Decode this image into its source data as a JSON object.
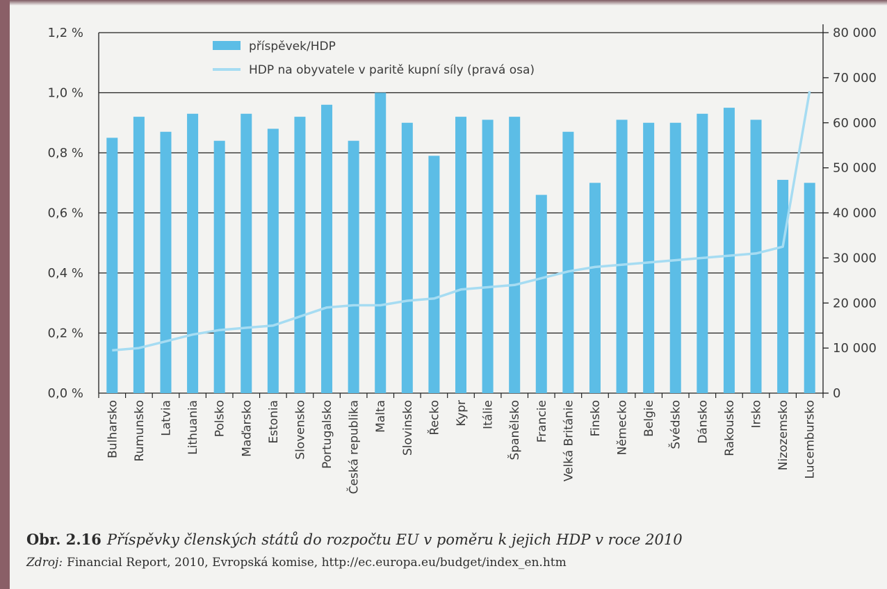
{
  "chart_data": {
    "type": "bar",
    "categories": [
      "Bulharsko",
      "Rumunsko",
      "Latvia",
      "Lithuania",
      "Polsko",
      "Maďarsko",
      "Estonia",
      "Slovensko",
      "Portugalsko",
      "Česká republika",
      "Malta",
      "Slovinsko",
      "Řecko",
      "Kypr",
      "Itálie",
      "Španělsko",
      "Francie",
      "Velká Británie",
      "Finsko",
      "Německo",
      "Belgie",
      "Švédsko",
      "Dánsko",
      "Rakousko",
      "Irsko",
      "Nizozemsko",
      "Lucembursko"
    ],
    "series": [
      {
        "name": "příspěvek/HDP",
        "type": "bar",
        "axis": "left",
        "values": [
          0.85,
          0.92,
          0.87,
          0.93,
          0.84,
          0.93,
          0.88,
          0.92,
          0.96,
          0.84,
          1.0,
          0.9,
          0.79,
          0.92,
          0.91,
          0.92,
          0.66,
          0.87,
          0.7,
          0.91,
          0.9,
          0.9,
          0.93,
          0.95,
          0.91,
          0.71,
          0.7
        ]
      },
      {
        "name": "HDP na obyvatele v paritě kupní síly (pravá osa)",
        "type": "line",
        "axis": "right",
        "values": [
          9500,
          10000,
          11500,
          13000,
          14000,
          14500,
          15000,
          17000,
          19000,
          19500,
          19500,
          20500,
          21000,
          23000,
          23500,
          24000,
          25500,
          27000,
          28000,
          28500,
          29000,
          29500,
          30000,
          30500,
          31000,
          32500,
          67000
        ]
      }
    ],
    "y_left": {
      "ylim": [
        0,
        1.2
      ],
      "ticks": [
        "0,0 %",
        "0,2 %",
        "0,4 %",
        "0,6 %",
        "0,8 %",
        "1,0 %",
        "1,2 %"
      ]
    },
    "y_right": {
      "ylim": [
        0,
        80000
      ],
      "ticks": [
        "0",
        "10 000",
        "20 000",
        "30 000",
        "40 000",
        "50 000",
        "60 000",
        "70 000",
        "80 000"
      ]
    },
    "grid": true,
    "legend": "top-left",
    "colors": {
      "bar": "#5cbde6",
      "line": "#a6dcf2",
      "grid": "#1e1e1e"
    }
  },
  "caption": {
    "figure_number": "Obr. 2.16",
    "title": "Příspěvky členských států do rozpočtu EU v poměru k jejich HDP v roce 2010"
  },
  "source": {
    "label": "Zdroj:",
    "text": "Financial Report, 2010, Evropská komise, http://ec.europa.eu/budget/index_en.htm"
  }
}
